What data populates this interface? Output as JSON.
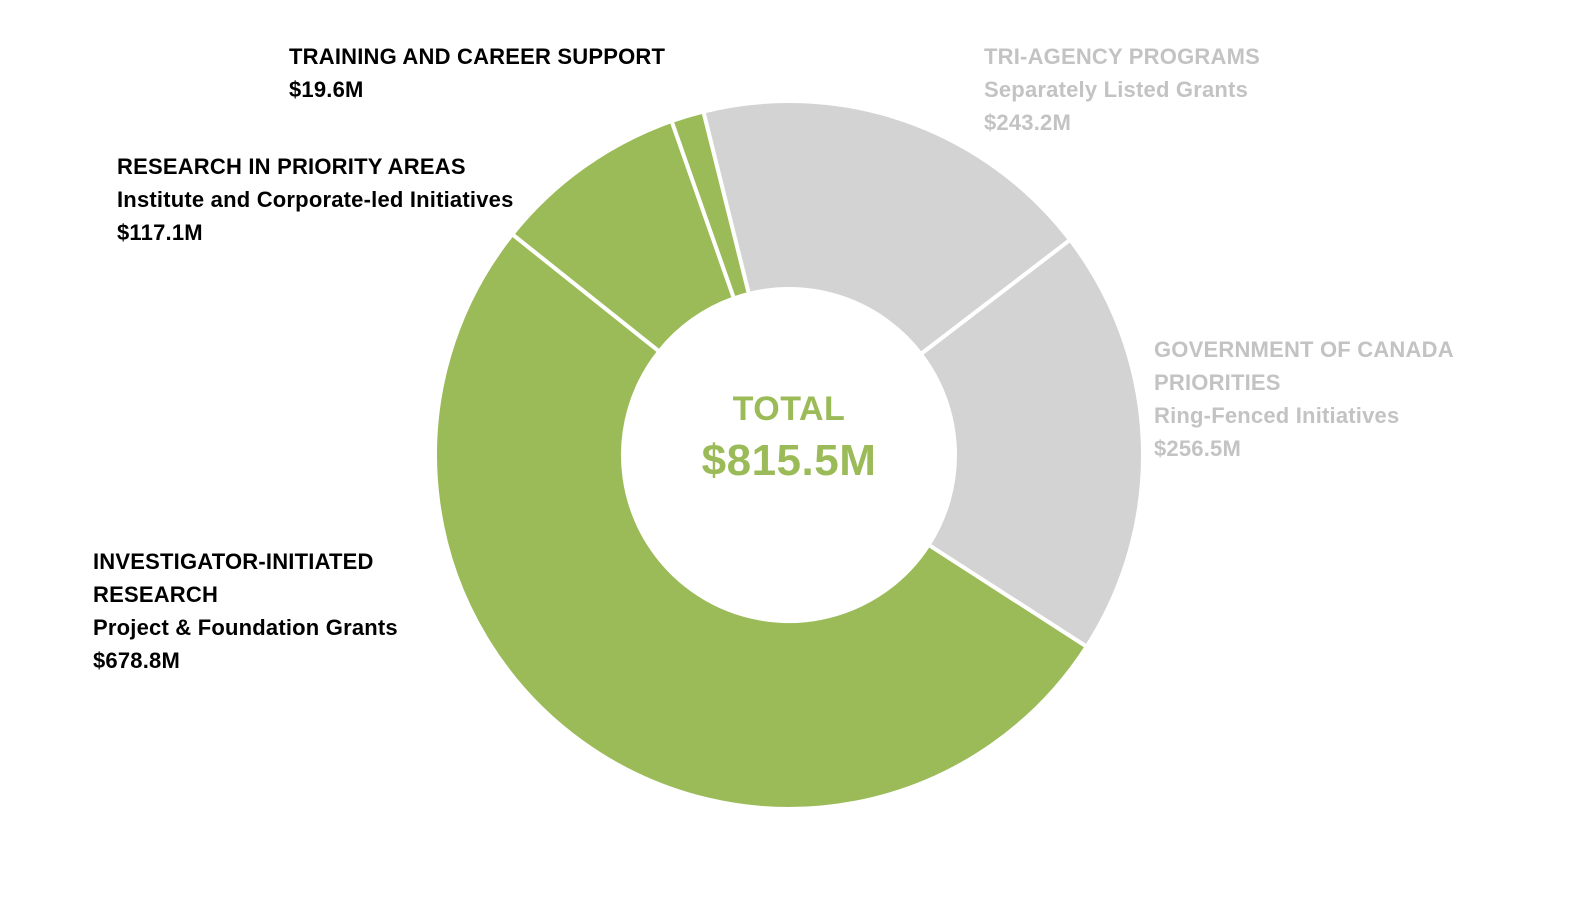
{
  "colors": {
    "green": "#9BBB59",
    "gray_slice": "#D3D3D3",
    "gray_text": "#C3C3C3",
    "dark_text": "#000000",
    "separator": "#FFFFFF",
    "background": "#FFFFFF"
  },
  "chart_data": {
    "type": "pie",
    "subtype": "donut",
    "center_label": "TOTAL",
    "center_value": "$815.5M",
    "center_total_m": 815.5,
    "start_angle_deg": -14,
    "direction": "clockwise",
    "inner_radius_ratio": 0.47,
    "legend_position": "around-chart",
    "grid": false,
    "slices": [
      {
        "id": "tri-agency",
        "name": "TRI-AGENCY PROGRAMS",
        "subtitle": "Separately Listed Grants",
        "value_m": 243.2,
        "value_label": "$243.2M",
        "color": "#D3D3D3",
        "label_color": "#C3C3C3"
      },
      {
        "id": "gov-canada",
        "name": "GOVERNMENT OF CANADA PRIORITIES",
        "subtitle": "Ring-Fenced Initiatives",
        "value_m": 256.5,
        "value_label": "$256.5M",
        "color": "#D3D3D3",
        "label_color": "#C3C3C3"
      },
      {
        "id": "investigator",
        "name": "INVESTIGATOR-INITIATED RESEARCH",
        "subtitle": "Project & Foundation Grants",
        "value_m": 678.8,
        "value_label": "$678.8M",
        "color": "#9BBB59",
        "label_color": "#000000"
      },
      {
        "id": "research-priority",
        "name": "RESEARCH IN PRIORITY AREAS",
        "subtitle": "Institute and Corporate-led Initiatives",
        "value_m": 117.1,
        "value_label": "$117.1M",
        "color": "#9BBB59",
        "label_color": "#000000"
      },
      {
        "id": "training",
        "name": "TRAINING AND CAREER SUPPORT",
        "subtitle": "",
        "value_m": 19.6,
        "value_label": "$19.6M",
        "color": "#9BBB59",
        "label_color": "#000000"
      }
    ]
  }
}
